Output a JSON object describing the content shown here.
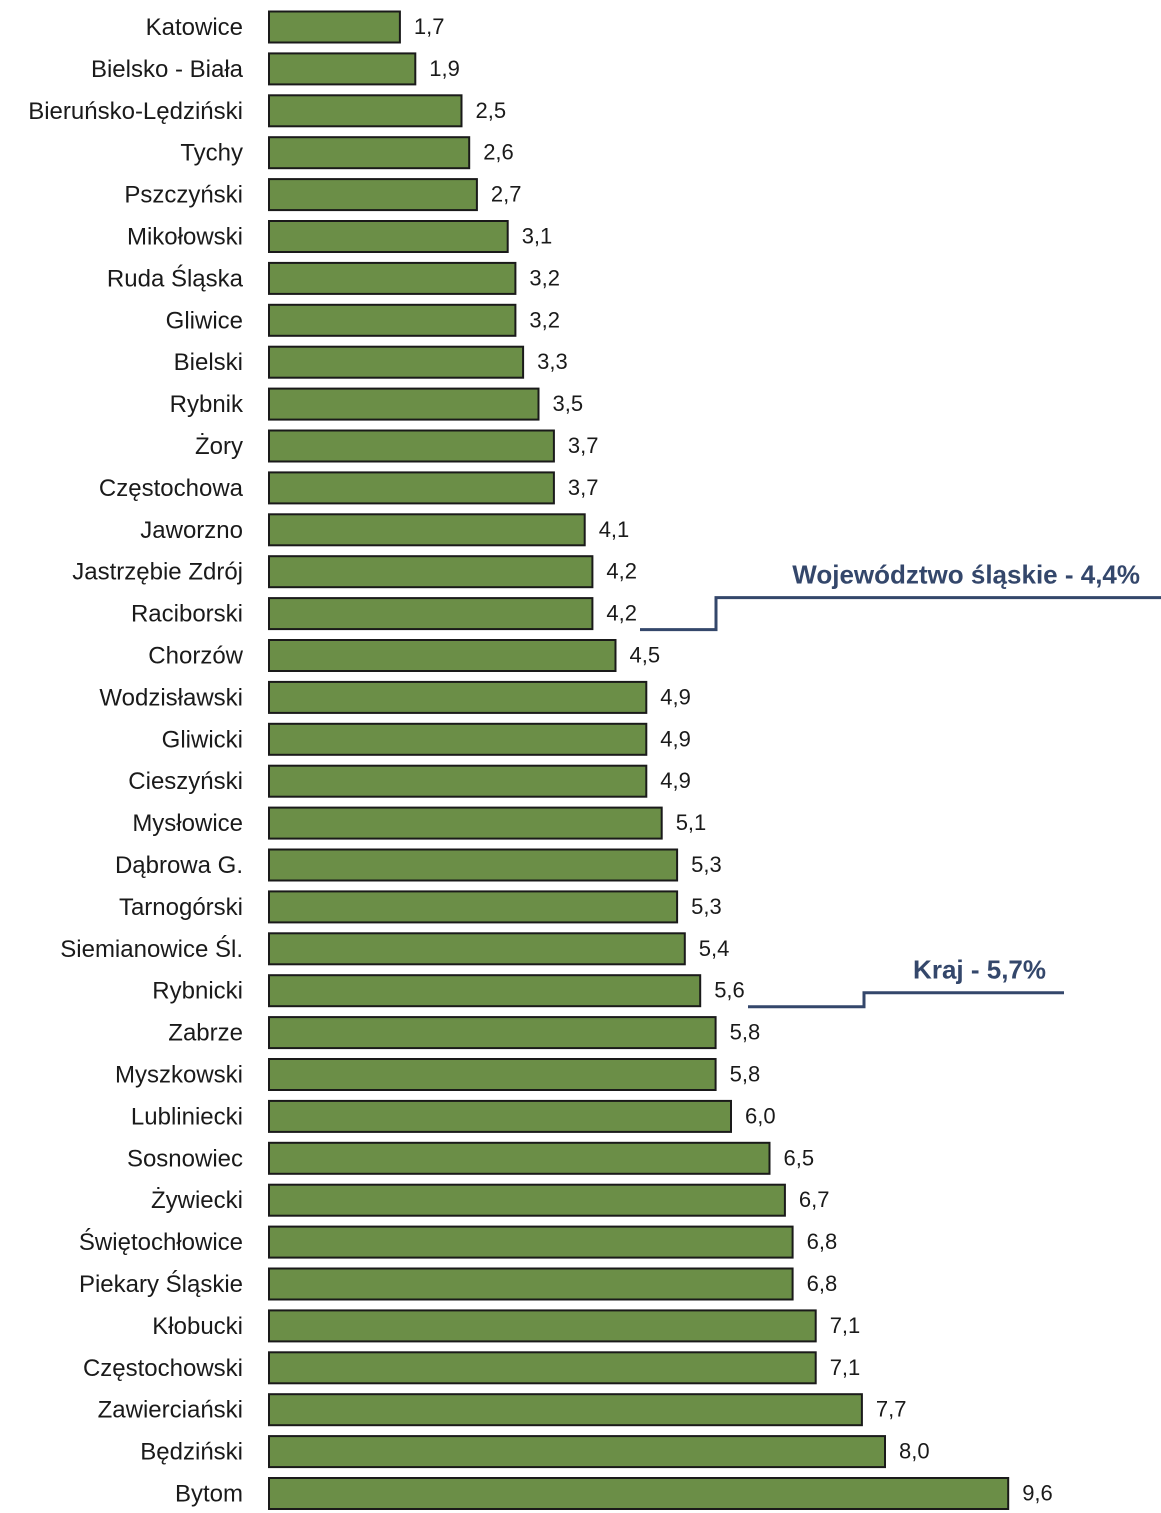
{
  "chart_data": {
    "type": "bar",
    "orientation": "horizontal",
    "categories": [
      "Katowice",
      "Bielsko - Biała",
      "Bieruńsko-Lędziński",
      "Tychy",
      "Pszczyński",
      "Mikołowski",
      "Ruda  Śląska",
      "Gliwice",
      "Bielski",
      "Rybnik",
      "Żory",
      "Częstochowa",
      "Jaworzno",
      "Jastrzębie Zdrój",
      "Raciborski",
      "Chorzów",
      "Wodzisławski",
      "Gliwicki",
      "Cieszyński",
      "Mysłowice",
      "Dąbrowa G.",
      "Tarnogórski",
      "Siemianowice Śl.",
      "Rybnicki",
      "Zabrze",
      "Myszkowski",
      "Lubliniecki",
      "Sosnowiec",
      "Żywiecki",
      "Świętochłowice",
      "Piekary Śląskie",
      "Kłobucki",
      "Częstochowski",
      "Zawierciański",
      "Będziński",
      "Bytom"
    ],
    "values": [
      1.7,
      1.9,
      2.5,
      2.6,
      2.7,
      3.1,
      3.2,
      3.2,
      3.3,
      3.5,
      3.7,
      3.7,
      4.1,
      4.2,
      4.2,
      4.5,
      4.9,
      4.9,
      4.9,
      5.1,
      5.3,
      5.3,
      5.4,
      5.6,
      5.8,
      5.8,
      6.0,
      6.5,
      6.7,
      6.8,
      6.8,
      7.1,
      7.1,
      7.7,
      8.0,
      9.6
    ],
    "value_labels": [
      "1,7",
      "1,9",
      "2,5",
      "2,6",
      "2,7",
      "3,1",
      "3,2",
      "3,2",
      "3,3",
      "3,5",
      "3,7",
      "3,7",
      "4,1",
      "4,2",
      "4,2",
      "4,5",
      "4,9",
      "4,9",
      "4,9",
      "5,1",
      "5,3",
      "5,3",
      "5,4",
      "5,6",
      "5,8",
      "5,8",
      "6,0",
      "6,5",
      "6,7",
      "6,8",
      "6,8",
      "7,1",
      "7,1",
      "7,7",
      "8,0",
      "9,6"
    ],
    "xlim": [
      0,
      10
    ],
    "grid": false,
    "bar_color": "#6b8e47",
    "bar_border_color": "#1a1a1a",
    "reference_lines": [
      {
        "label": "Województwo śląskie - 4,4%",
        "value": 4.4,
        "anchor_category": "Raciborski",
        "color": "#34476b"
      },
      {
        "label": "Kraj - 5,7%",
        "value": 5.7,
        "anchor_category": "Rybnicki",
        "color": "#34476b"
      }
    ]
  }
}
